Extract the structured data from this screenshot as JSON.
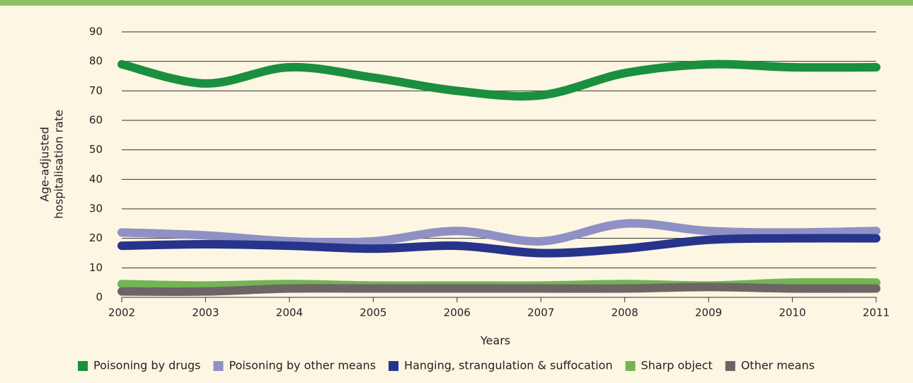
{
  "chart_data": {
    "type": "line",
    "x_label": "Years",
    "y_label": [
      "Age-adjusted",
      "hospitalisation rate"
    ],
    "x": [
      2002,
      2003,
      2004,
      2005,
      2006,
      2007,
      2008,
      2009,
      2010,
      2011
    ],
    "xlim": [
      2002,
      2011
    ],
    "xticks": [
      2002,
      2003,
      2004,
      2005,
      2006,
      2007,
      2008,
      2009,
      2010,
      2011
    ],
    "ylim": [
      0,
      90
    ],
    "yticks": [
      0,
      10,
      20,
      30,
      40,
      50,
      60,
      70,
      80,
      90
    ],
    "grid": true,
    "smooth": true,
    "legend": "bottom",
    "series": [
      {
        "name": "Poisoning by drugs",
        "color": "#1a8f3f",
        "values": [
          79,
          72.5,
          78,
          74.5,
          70,
          68.5,
          76,
          79,
          78,
          78
        ]
      },
      {
        "name": "Poisoning by other means",
        "color": "#8f90c4",
        "values": [
          22,
          21,
          19,
          19,
          22.5,
          19,
          25,
          22.5,
          22,
          22.5
        ]
      },
      {
        "name": "Hanging, strangulation & suffocation",
        "color": "#27348b",
        "values": [
          17.5,
          18,
          17.5,
          16.5,
          17.5,
          15,
          16.5,
          19.5,
          20,
          20
        ]
      },
      {
        "name": "Sharp object",
        "color": "#72b552",
        "values": [
          4.5,
          4,
          4.5,
          4,
          4,
          4,
          4.5,
          4,
          5,
          5
        ]
      },
      {
        "name": "Other means",
        "color": "#6d6565",
        "values": [
          2,
          2,
          3,
          3,
          3,
          3,
          3,
          3.5,
          3,
          3
        ]
      }
    ]
  }
}
